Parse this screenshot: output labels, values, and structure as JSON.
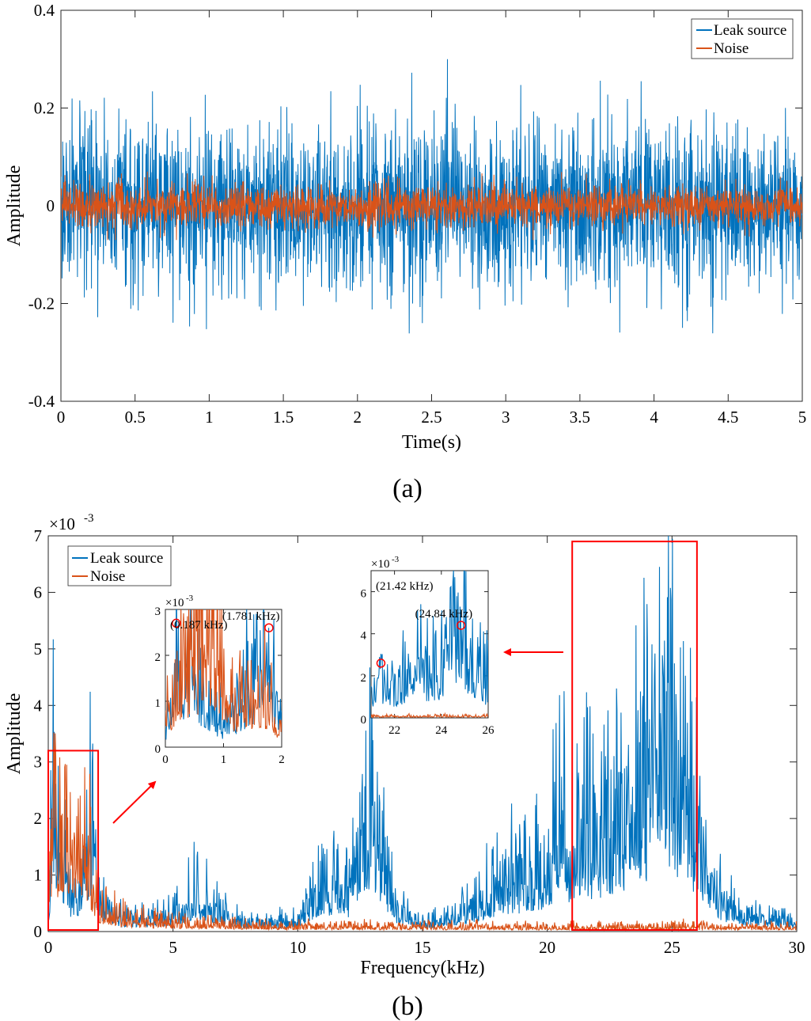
{
  "colors": {
    "leak": "#0072BD",
    "noise": "#D95319",
    "highlight": "#FF0000"
  },
  "chart_data": [
    {
      "id": "a",
      "type": "line",
      "panel_label": "(a)",
      "xlabel": "Time(s)",
      "ylabel": "Amplitude",
      "xlim": [
        0,
        5
      ],
      "ylim": [
        -0.4,
        0.4
      ],
      "xticks": [
        0,
        0.5,
        1,
        1.5,
        2,
        2.5,
        3,
        3.5,
        4,
        4.5,
        5
      ],
      "xtick_labels": [
        "0",
        "0.5",
        "1",
        "1.5",
        "2",
        "2.5",
        "3",
        "3.5",
        "4",
        "4.5",
        "5"
      ],
      "yticks": [
        -0.4,
        -0.2,
        0,
        0.2,
        0.4
      ],
      "ytick_labels": [
        "-0.4",
        "-0.2",
        "0",
        "0.2",
        "0.4"
      ],
      "legend": {
        "location": "top-right",
        "entries": [
          "Leak source",
          "Noise"
        ]
      },
      "series": [
        {
          "name": "Leak source",
          "color_key": "leak",
          "envelope": {
            "typical": [
              -0.15,
              0.15
            ],
            "peak": [
              -0.3,
              0.3
            ]
          }
        },
        {
          "name": "Noise",
          "color_key": "noise",
          "envelope": {
            "typical": [
              -0.04,
              0.04
            ],
            "peak": [
              -0.07,
              0.07
            ]
          }
        }
      ]
    },
    {
      "id": "b",
      "type": "line",
      "panel_label": "(b)",
      "xlabel": "Frequency(kHz)",
      "ylabel": "Amplitude",
      "y_exponent": "×10",
      "y_exponent_power": "-3",
      "xlim": [
        0,
        30
      ],
      "ylim": [
        0,
        7
      ],
      "xticks": [
        0,
        5,
        10,
        15,
        20,
        25,
        30
      ],
      "xtick_labels": [
        "0",
        "5",
        "10",
        "15",
        "20",
        "25",
        "30"
      ],
      "yticks": [
        0,
        1,
        2,
        3,
        4,
        5,
        6,
        7
      ],
      "ytick_labels": [
        "0",
        "1",
        "2",
        "3",
        "4",
        "5",
        "6",
        "7"
      ],
      "legend": {
        "location": "top-left",
        "entries": [
          "Leak source",
          "Noise"
        ]
      },
      "series": [
        {
          "name": "Leak source",
          "color_key": "leak",
          "x": [
            0,
            0.187,
            1,
            1.781,
            2,
            3,
            4,
            5,
            6,
            7,
            8,
            9,
            10,
            11,
            12,
            12.9,
            14,
            15,
            16,
            17,
            18,
            19,
            20,
            20.5,
            21,
            21.42,
            22,
            23,
            24,
            24.5,
            24.84,
            25,
            26,
            27,
            28,
            29,
            30
          ],
          "y": [
            0.4,
            2.7,
            0.6,
            2.6,
            0.8,
            0.3,
            0.3,
            0.4,
            0.9,
            0.4,
            0.2,
            0.2,
            0.3,
            1.2,
            0.8,
            2.9,
            0.5,
            0.2,
            0.3,
            0.6,
            1.1,
            1.3,
            1.4,
            2.6,
            1.5,
            2.6,
            2.1,
            2.8,
            3.4,
            6.45,
            4.4,
            4.3,
            2.2,
            0.7,
            0.4,
            0.3,
            0.2
          ]
        },
        {
          "name": "Noise",
          "color_key": "noise",
          "x": [
            0,
            0.2,
            0.75,
            1.2,
            1.6,
            2,
            3,
            4,
            5,
            6,
            8,
            10,
            15,
            20,
            25,
            30
          ],
          "y": [
            0.8,
            2.1,
            2.95,
            1.3,
            1.7,
            0.6,
            0.3,
            0.25,
            0.2,
            0.2,
            0.15,
            0.12,
            0.12,
            0.1,
            0.12,
            0.1
          ]
        }
      ],
      "highlight_boxes": [
        {
          "x": [
            0,
            2
          ],
          "y": [
            0,
            3.2
          ]
        },
        {
          "x": [
            21,
            26
          ],
          "y": [
            0,
            6.9
          ]
        }
      ],
      "insets": [
        {
          "id": "inset-low",
          "xlim": [
            0,
            2
          ],
          "ylim": [
            0,
            3
          ],
          "xticks": [
            0,
            1,
            2
          ],
          "xtick_labels": [
            "0",
            "1",
            "2"
          ],
          "yticks": [
            0,
            1,
            2,
            3
          ],
          "ytick_labels": [
            "0",
            "1",
            "2",
            "3"
          ],
          "y_exponent": "×10",
          "y_exponent_power": "-3",
          "markers": [
            {
              "x": 0.187,
              "y": 2.7,
              "label": "(0.187 kHz)"
            },
            {
              "x": 1.781,
              "y": 2.6,
              "label": "(1.781 kHz)"
            }
          ]
        },
        {
          "id": "inset-high",
          "xlim": [
            21,
            26
          ],
          "ylim": [
            0,
            7
          ],
          "xticks": [
            22,
            24,
            26
          ],
          "xtick_labels": [
            "22",
            "24",
            "26"
          ],
          "yticks": [
            0,
            2,
            4,
            6
          ],
          "ytick_labels": [
            "0",
            "2",
            "4",
            "6"
          ],
          "y_exponent": "×10",
          "y_exponent_power": "-3",
          "markers": [
            {
              "x": 21.42,
              "y": 2.6,
              "label": "(21.42 kHz)"
            },
            {
              "x": 24.84,
              "y": 4.4,
              "label": "(24.84 kHz)"
            }
          ]
        }
      ]
    }
  ]
}
